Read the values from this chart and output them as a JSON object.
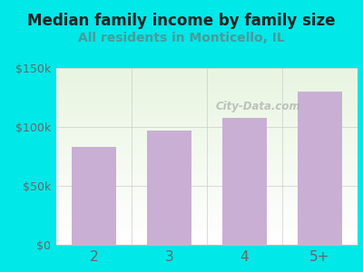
{
  "categories": [
    "2",
    "3",
    "4",
    "5+"
  ],
  "values": [
    83000,
    97000,
    108000,
    130000
  ],
  "bar_color": "#c9afd4",
  "title": "Median family income by family size",
  "subtitle": "All residents in Monticello, IL",
  "title_color": "#222222",
  "subtitle_color": "#4a9a9a",
  "outer_bg_color": "#00e8e8",
  "plot_bg_color_top_left": "#e8f5e0",
  "plot_bg_color_bottom_right": "#ffffff",
  "ytick_labels": [
    "$0",
    "$50k",
    "$100k",
    "$150k"
  ],
  "ytick_values": [
    0,
    50000,
    100000,
    150000
  ],
  "ylim": [
    0,
    150000
  ],
  "tick_color": "#666666",
  "watermark": "City-Data.com",
  "watermark_color": "#aaaaaa",
  "figsize": [
    4.0,
    3.0
  ],
  "dpi": 100
}
